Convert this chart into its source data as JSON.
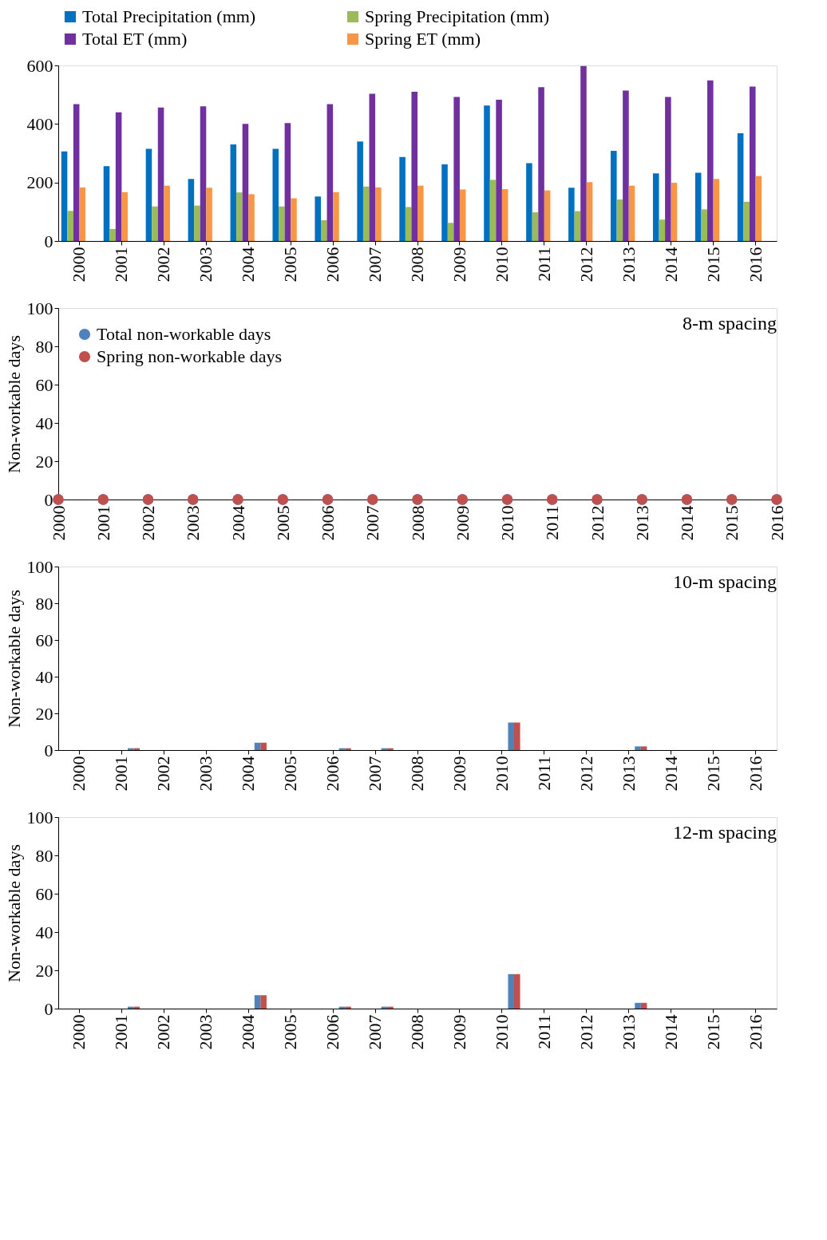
{
  "chart_data": [
    {
      "type": "bar",
      "categories": [
        "2000",
        "2001",
        "2002",
        "2003",
        "2004",
        "2005",
        "2006",
        "2007",
        "2008",
        "2009",
        "2010",
        "2011",
        "2012",
        "2013",
        "2014",
        "2015",
        "2016"
      ],
      "ylim": [
        0,
        600
      ],
      "yticks": [
        0,
        200,
        400,
        600
      ],
      "grid": false,
      "legend": "top",
      "series": [
        {
          "name": "Total Precipitation (mm)",
          "color": "#0070c0",
          "values": [
            306,
            256,
            315,
            212,
            330,
            315,
            152,
            340,
            287,
            262,
            463,
            266,
            182,
            308,
            231,
            233,
            368
          ]
        },
        {
          "name": "Spring Precipitation (mm)",
          "color": "#9bbb59",
          "values": [
            103,
            41,
            118,
            121,
            166,
            118,
            71,
            186,
            116,
            62,
            209,
            98,
            102,
            142,
            73,
            108,
            134
          ]
        },
        {
          "name": "Total ET (mm)",
          "color": "#7030a0",
          "values": [
            468,
            440,
            456,
            460,
            400,
            403,
            468,
            503,
            510,
            492,
            483,
            526,
            598,
            514,
            492,
            549,
            528
          ]
        },
        {
          "name": "Spring ET (mm)",
          "color": "#f79646",
          "values": [
            183,
            167,
            189,
            182,
            160,
            146,
            167,
            183,
            189,
            176,
            177,
            173,
            201,
            189,
            199,
            212,
            222
          ]
        }
      ]
    },
    {
      "type": "scatter",
      "categories": [
        "2000",
        "2001",
        "2002",
        "2003",
        "2004",
        "2005",
        "2006",
        "2007",
        "2008",
        "2009",
        "2010",
        "2011",
        "2012",
        "2013",
        "2014",
        "2015",
        "2016"
      ],
      "ylabel": "Non-workable days",
      "ylim": [
        0,
        100
      ],
      "yticks": [
        0,
        20,
        40,
        60,
        80,
        100
      ],
      "grid": false,
      "legend": "top left",
      "marker": "circle",
      "annotations": [
        "8-m spacing"
      ],
      "series": [
        {
          "name": "Total non-workable days",
          "color": "#4f81bd",
          "values": [
            0,
            0,
            0,
            0,
            0,
            0,
            0,
            0,
            0,
            0,
            0,
            0,
            0,
            0,
            0,
            0,
            0
          ]
        },
        {
          "name": "Spring non-workable days",
          "color": "#c0504d",
          "values": [
            0,
            0,
            0,
            0,
            0,
            0,
            0,
            0,
            0,
            0,
            0,
            0,
            0,
            0,
            0,
            0,
            0
          ]
        }
      ]
    },
    {
      "type": "bar",
      "categories": [
        "2000",
        "2001",
        "2002",
        "2003",
        "2004",
        "2005",
        "2006",
        "2007",
        "2008",
        "2009",
        "2010",
        "2011",
        "2012",
        "2013",
        "2014",
        "2015",
        "2016"
      ],
      "ylabel": "Non-workable days",
      "ylim": [
        0,
        100
      ],
      "yticks": [
        0,
        20,
        40,
        60,
        80,
        100
      ],
      "grid": false,
      "annotations": [
        "10-m spacing"
      ],
      "series": [
        {
          "color": "#4f81bd",
          "values": [
            0,
            1,
            0,
            0,
            4,
            0,
            1,
            1,
            0,
            0,
            15,
            0,
            0,
            2,
            0,
            0,
            0
          ]
        },
        {
          "color": "#c0504d",
          "values": [
            0,
            1,
            0,
            0,
            4,
            0,
            1,
            1,
            0,
            0,
            15,
            0,
            0,
            2,
            0,
            0,
            0
          ]
        }
      ]
    },
    {
      "type": "bar",
      "categories": [
        "2000",
        "2001",
        "2002",
        "2003",
        "2004",
        "2005",
        "2006",
        "2007",
        "2008",
        "2009",
        "2010",
        "2011",
        "2012",
        "2013",
        "2014",
        "2015",
        "2016"
      ],
      "ylabel": "Non-workable days",
      "ylim": [
        0,
        100
      ],
      "yticks": [
        0,
        20,
        40,
        60,
        80,
        100
      ],
      "grid": false,
      "annotations": [
        "12-m spacing"
      ],
      "series": [
        {
          "color": "#4f81bd",
          "values": [
            0,
            1,
            0,
            0,
            7,
            0,
            1,
            1,
            0,
            0,
            18,
            0,
            0,
            3,
            0,
            0,
            0
          ]
        },
        {
          "color": "#c0504d",
          "values": [
            0,
            1,
            0,
            0,
            7,
            0,
            1,
            1,
            0,
            0,
            18,
            0,
            0,
            3,
            0,
            0,
            0
          ]
        }
      ]
    }
  ]
}
